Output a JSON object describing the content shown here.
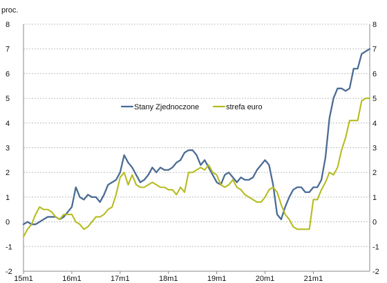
{
  "chart_data": {
    "type": "line",
    "title": "",
    "ylabel": "proc.",
    "xlabel": "",
    "x_tick_labels": [
      "15m1",
      "16m1",
      "17m1",
      "18m1",
      "19m1",
      "20m1",
      "21m1"
    ],
    "x_tick_months": [
      0,
      12,
      24,
      36,
      48,
      60,
      72
    ],
    "x_range_months": [
      0,
      86
    ],
    "ylim": [
      -2,
      8
    ],
    "y_ticks": [
      -2,
      -1,
      0,
      1,
      2,
      3,
      4,
      5,
      6,
      7,
      8
    ],
    "grid": {
      "horizontal": true,
      "vertical": false,
      "style": "dashed"
    },
    "legend": {
      "placement": "center",
      "entries": [
        {
          "name": "Stany Zjednoczone",
          "color": "#4a6b94"
        },
        {
          "name": "strefa euro",
          "color": "#b6bc20"
        }
      ]
    },
    "series": [
      {
        "name": "Stany Zjednoczone",
        "color": "#4a6b94",
        "x": [
          0,
          1,
          2,
          3,
          4,
          5,
          6,
          7,
          8,
          9,
          10,
          11,
          12,
          13,
          14,
          15,
          16,
          17,
          18,
          19,
          20,
          21,
          22,
          23,
          24,
          25,
          26,
          27,
          28,
          29,
          30,
          31,
          32,
          33,
          34,
          35,
          36,
          37,
          38,
          39,
          40,
          41,
          42,
          43,
          44,
          45,
          46,
          47,
          48,
          49,
          50,
          51,
          52,
          53,
          54,
          55,
          56,
          57,
          58,
          59,
          60,
          61,
          62,
          63,
          64,
          65,
          66,
          67,
          68,
          69,
          70,
          71,
          72,
          73,
          74,
          75,
          76,
          77,
          78,
          79,
          80,
          81,
          82,
          83,
          84,
          85,
          86
        ],
        "values": [
          -0.1,
          0.0,
          -0.1,
          -0.1,
          0.0,
          0.1,
          0.2,
          0.2,
          0.2,
          0.1,
          0.2,
          0.4,
          0.6,
          1.4,
          1.0,
          0.9,
          1.1,
          1.0,
          1.0,
          0.8,
          1.1,
          1.5,
          1.6,
          1.7,
          2.0,
          2.7,
          2.4,
          2.2,
          1.9,
          1.6,
          1.7,
          1.9,
          2.2,
          2.0,
          2.2,
          2.1,
          2.1,
          2.2,
          2.4,
          2.5,
          2.8,
          2.9,
          2.9,
          2.7,
          2.3,
          2.5,
          2.2,
          1.9,
          1.6,
          1.5,
          1.9,
          2.0,
          1.8,
          1.6,
          1.8,
          1.7,
          1.7,
          1.8,
          2.1,
          2.3,
          2.5,
          2.3,
          1.5,
          0.3,
          0.1,
          0.6,
          1.0,
          1.3,
          1.4,
          1.4,
          1.2,
          1.2,
          1.4,
          1.4,
          1.7,
          2.6,
          4.2,
          5.0,
          5.4,
          5.4,
          5.3,
          5.4,
          6.2,
          6.2,
          6.8,
          6.9,
          7.0
        ]
      },
      {
        "name": "strefa euro",
        "color": "#b6bc20",
        "x": [
          0,
          1,
          2,
          3,
          4,
          5,
          6,
          7,
          8,
          9,
          10,
          11,
          12,
          13,
          14,
          15,
          16,
          17,
          18,
          19,
          20,
          21,
          22,
          23,
          24,
          25,
          26,
          27,
          28,
          29,
          30,
          31,
          32,
          33,
          34,
          35,
          36,
          37,
          38,
          39,
          40,
          41,
          42,
          43,
          44,
          45,
          46,
          47,
          48,
          49,
          50,
          51,
          52,
          53,
          54,
          55,
          56,
          57,
          58,
          59,
          60,
          61,
          62,
          63,
          64,
          65,
          66,
          67,
          68,
          69,
          70,
          71,
          72,
          73,
          74,
          75,
          76,
          77,
          78,
          79,
          80,
          81,
          82,
          83,
          84,
          85,
          86
        ],
        "values": [
          -0.6,
          -0.3,
          -0.1,
          0.3,
          0.6,
          0.5,
          0.5,
          0.4,
          0.2,
          0.1,
          0.3,
          0.3,
          0.3,
          0.0,
          -0.1,
          -0.3,
          -0.2,
          0.0,
          0.2,
          0.2,
          0.3,
          0.5,
          0.6,
          1.1,
          1.8,
          2.0,
          1.5,
          1.9,
          1.5,
          1.4,
          1.4,
          1.5,
          1.6,
          1.5,
          1.4,
          1.4,
          1.3,
          1.3,
          1.1,
          1.4,
          1.2,
          2.0,
          2.0,
          2.1,
          2.2,
          2.1,
          2.3,
          2.0,
          1.9,
          1.5,
          1.4,
          1.5,
          1.7,
          1.4,
          1.3,
          1.1,
          1.0,
          0.9,
          0.8,
          0.8,
          1.0,
          1.3,
          1.4,
          1.2,
          0.7,
          0.3,
          0.1,
          -0.2,
          -0.3,
          -0.3,
          -0.3,
          -0.3,
          0.9,
          0.9,
          1.3,
          1.6,
          2.0,
          1.9,
          2.2,
          2.9,
          3.4,
          4.1,
          4.1,
          4.1,
          4.9,
          5.0,
          5.0
        ]
      }
    ]
  }
}
